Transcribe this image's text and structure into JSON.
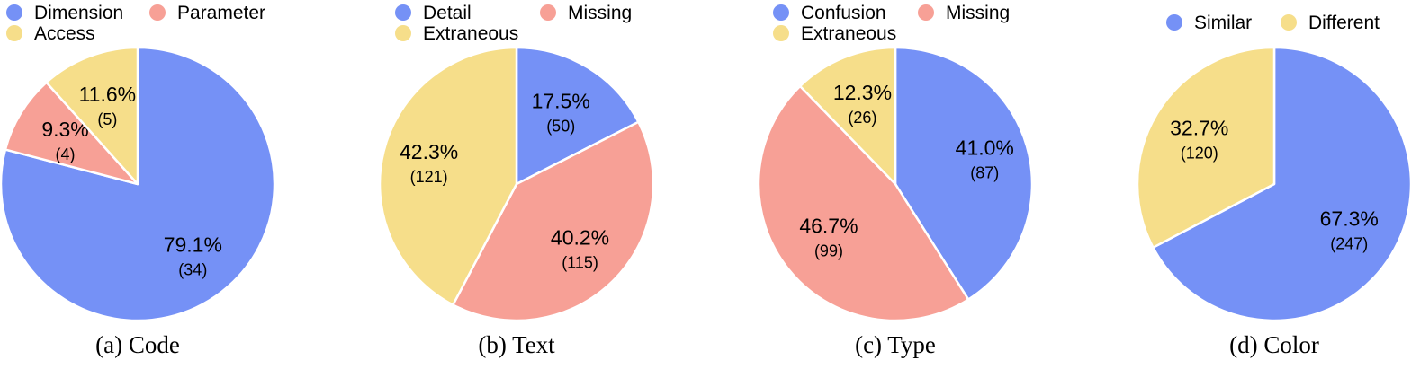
{
  "chart_data": [
    {
      "type": "pie",
      "caption": "(a) Code",
      "slices": [
        {
          "label": "Dimension",
          "percent": "79.1%",
          "count": "(34)",
          "value": 34,
          "color": "#7591f6"
        },
        {
          "label": "Parameter",
          "percent": "9.3%",
          "count": "(4)",
          "value": 4,
          "color": "#f7a096"
        },
        {
          "label": "Access",
          "percent": "11.6%",
          "count": "(5)",
          "value": 5,
          "color": "#f6de8a"
        }
      ]
    },
    {
      "type": "pie",
      "caption": "(b) Text",
      "slices": [
        {
          "label": "Detail",
          "percent": "17.5%",
          "count": "(50)",
          "value": 50,
          "color": "#7591f6"
        },
        {
          "label": "Missing",
          "percent": "40.2%",
          "count": "(115)",
          "value": 115,
          "color": "#f7a096"
        },
        {
          "label": "Extraneous",
          "percent": "42.3%",
          "count": "(121)",
          "value": 121,
          "color": "#f6de8a"
        }
      ]
    },
    {
      "type": "pie",
      "caption": "(c) Type",
      "slices": [
        {
          "label": "Confusion",
          "percent": "41.0%",
          "count": "(87)",
          "value": 87,
          "color": "#7591f6"
        },
        {
          "label": "Missing",
          "percent": "46.7%",
          "count": "(99)",
          "value": 99,
          "color": "#f7a096"
        },
        {
          "label": "Extraneous",
          "percent": "12.3%",
          "count": "(26)",
          "value": 26,
          "color": "#f6de8a"
        }
      ]
    },
    {
      "type": "pie",
      "caption": "(d) Color",
      "slices": [
        {
          "label": "Similar",
          "percent": "67.3%",
          "count": "(247)",
          "value": 247,
          "color": "#7591f6"
        },
        {
          "label": "Different",
          "percent": "32.7%",
          "count": "(120)",
          "value": 120,
          "color": "#f6de8a"
        }
      ]
    }
  ]
}
